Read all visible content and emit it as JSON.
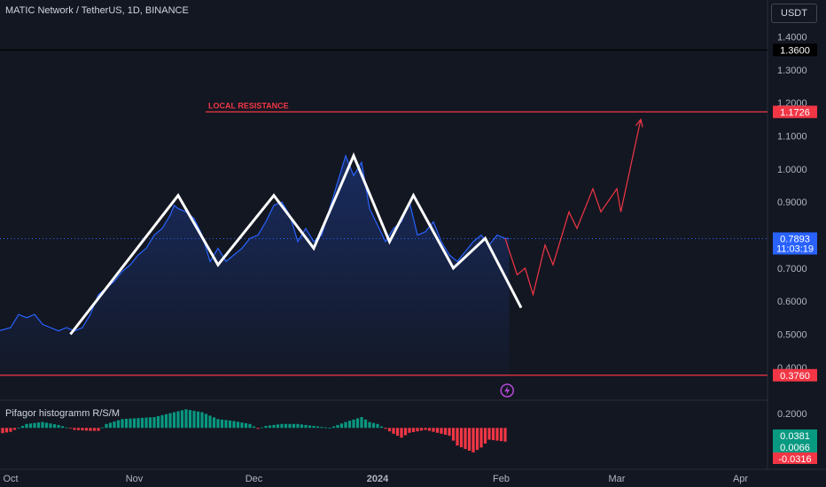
{
  "header": {
    "title": "MATIC Network / TetherUS, 1D, BINANCE",
    "currency": "USDT"
  },
  "chart_data": {
    "type": "line",
    "ylim": [
      0.37,
      1.42
    ],
    "y_ticks": [
      "1.4000",
      "1.3000",
      "1.2000",
      "1.1000",
      "1.0000",
      "0.9000",
      "0.7000",
      "0.6000",
      "0.5000",
      "0.4000"
    ],
    "x_ticks": [
      {
        "label": "Oct",
        "day": 0
      },
      {
        "label": "Nov",
        "day": 31
      },
      {
        "label": "Dec",
        "day": 61
      },
      {
        "label": "2024",
        "day": 92,
        "bold": true
      },
      {
        "label": "Feb",
        "day": 123
      },
      {
        "label": "Mar",
        "day": 152
      },
      {
        "label": "Apr",
        "day": 183
      }
    ],
    "price_series": [
      [
        -3,
        0.51
      ],
      [
        0,
        0.52
      ],
      [
        2,
        0.56
      ],
      [
        4,
        0.55
      ],
      [
        6,
        0.56
      ],
      [
        8,
        0.53
      ],
      [
        10,
        0.52
      ],
      [
        12,
        0.51
      ],
      [
        14,
        0.52
      ],
      [
        16,
        0.51
      ],
      [
        18,
        0.52
      ],
      [
        20,
        0.56
      ],
      [
        22,
        0.62
      ],
      [
        24,
        0.64
      ],
      [
        26,
        0.66
      ],
      [
        28,
        0.69
      ],
      [
        30,
        0.71
      ],
      [
        32,
        0.74
      ],
      [
        34,
        0.76
      ],
      [
        36,
        0.8
      ],
      [
        38,
        0.82
      ],
      [
        40,
        0.86
      ],
      [
        41,
        0.89
      ],
      [
        42,
        0.88
      ],
      [
        44,
        0.87
      ],
      [
        46,
        0.85
      ],
      [
        48,
        0.8
      ],
      [
        50,
        0.72
      ],
      [
        52,
        0.76
      ],
      [
        54,
        0.72
      ],
      [
        56,
        0.74
      ],
      [
        58,
        0.76
      ],
      [
        60,
        0.79
      ],
      [
        62,
        0.8
      ],
      [
        64,
        0.84
      ],
      [
        66,
        0.89
      ],
      [
        68,
        0.9
      ],
      [
        70,
        0.86
      ],
      [
        72,
        0.78
      ],
      [
        74,
        0.82
      ],
      [
        76,
        0.78
      ],
      [
        78,
        0.8
      ],
      [
        80,
        0.88
      ],
      [
        82,
        0.96
      ],
      [
        84,
        1.04
      ],
      [
        86,
        0.98
      ],
      [
        88,
        1.02
      ],
      [
        90,
        0.88
      ],
      [
        92,
        0.83
      ],
      [
        94,
        0.78
      ],
      [
        96,
        0.82
      ],
      [
        98,
        0.84
      ],
      [
        100,
        0.9
      ],
      [
        102,
        0.8
      ],
      [
        104,
        0.81
      ],
      [
        106,
        0.84
      ],
      [
        108,
        0.78
      ],
      [
        110,
        0.74
      ],
      [
        112,
        0.72
      ],
      [
        114,
        0.75
      ],
      [
        116,
        0.78
      ],
      [
        118,
        0.8
      ],
      [
        120,
        0.77
      ],
      [
        122,
        0.8
      ],
      [
        124,
        0.79
      ],
      [
        125,
        0.7893
      ]
    ],
    "pattern_line": [
      [
        15,
        0.5
      ],
      [
        42,
        0.92
      ],
      [
        52,
        0.71
      ],
      [
        66,
        0.92
      ],
      [
        76,
        0.76
      ],
      [
        86,
        1.04
      ],
      [
        95,
        0.78
      ],
      [
        101,
        0.92
      ],
      [
        111,
        0.7
      ],
      [
        119,
        0.79
      ],
      [
        128,
        0.58
      ]
    ],
    "projection_line": [
      [
        124,
        0.79
      ],
      [
        127,
        0.68
      ],
      [
        129,
        0.7
      ],
      [
        131,
        0.62
      ],
      [
        134,
        0.77
      ],
      [
        136,
        0.71
      ],
      [
        140,
        0.87
      ],
      [
        142,
        0.82
      ],
      [
        146,
        0.94
      ],
      [
        148,
        0.87
      ],
      [
        152,
        0.94
      ],
      [
        153,
        0.87
      ],
      [
        158,
        1.15
      ]
    ],
    "current_price": {
      "value": 0.7893,
      "label": "0.7893",
      "countdown": "11:03:19"
    },
    "levels": [
      {
        "value": 1.36,
        "label": "1.3600"
      },
      {
        "value": 1.1726,
        "label": "1.1726",
        "text": "LOCAL RESISTANCE"
      },
      {
        "value": 0.376,
        "label": "0.3760"
      }
    ],
    "indicator": {
      "name": "Pifagor histogramm R/S/M",
      "ylim": [
        -0.035,
        0.021
      ],
      "y_ticks": [
        "0.2000"
      ],
      "histogram": [
        [
          -3,
          -0.006
        ],
        [
          0,
          -0.004
        ],
        [
          4,
          0.004
        ],
        [
          8,
          0.006
        ],
        [
          12,
          0.003
        ],
        [
          16,
          -0.002
        ],
        [
          20,
          -0.003
        ],
        [
          22,
          -0.003
        ],
        [
          24,
          0.004
        ],
        [
          28,
          0.009
        ],
        [
          32,
          0.01
        ],
        [
          36,
          0.011
        ],
        [
          40,
          0.015
        ],
        [
          44,
          0.019
        ],
        [
          48,
          0.016
        ],
        [
          52,
          0.009
        ],
        [
          56,
          0.007
        ],
        [
          60,
          0.004
        ],
        [
          62,
          -0.001
        ],
        [
          64,
          0.002
        ],
        [
          68,
          0.004
        ],
        [
          72,
          0.004
        ],
        [
          76,
          0.002
        ],
        [
          80,
          0.0
        ],
        [
          84,
          0.006
        ],
        [
          88,
          0.011
        ],
        [
          90,
          0.006
        ],
        [
          92,
          0.004
        ],
        [
          96,
          -0.006
        ],
        [
          98,
          -0.01
        ],
        [
          100,
          -0.005
        ],
        [
          104,
          -0.002
        ],
        [
          108,
          -0.006
        ],
        [
          110,
          -0.008
        ],
        [
          112,
          -0.018
        ],
        [
          116,
          -0.025
        ],
        [
          118,
          -0.02
        ],
        [
          120,
          -0.012
        ],
        [
          124,
          -0.014
        ],
        [
          125,
          -0.015
        ]
      ],
      "badges": [
        {
          "label": "0.0381",
          "color": "#089981"
        },
        {
          "label": "0.0066",
          "color": "#089981"
        },
        {
          "label": "-0.0316",
          "color": "#f23645"
        }
      ]
    }
  },
  "colors": {
    "background": "#131722",
    "price_line": "#2962ff",
    "pattern": "#ffffff",
    "projection": "#f23645",
    "level_red": "#f23645",
    "level_black": "#000000",
    "current_badge": "#2962ff",
    "hist_up": "#089981",
    "hist_down": "#f23645",
    "grid": "#1e222d",
    "axis_text": "#b2b5be"
  },
  "icons": {
    "event_marker": "lightning-icon"
  }
}
